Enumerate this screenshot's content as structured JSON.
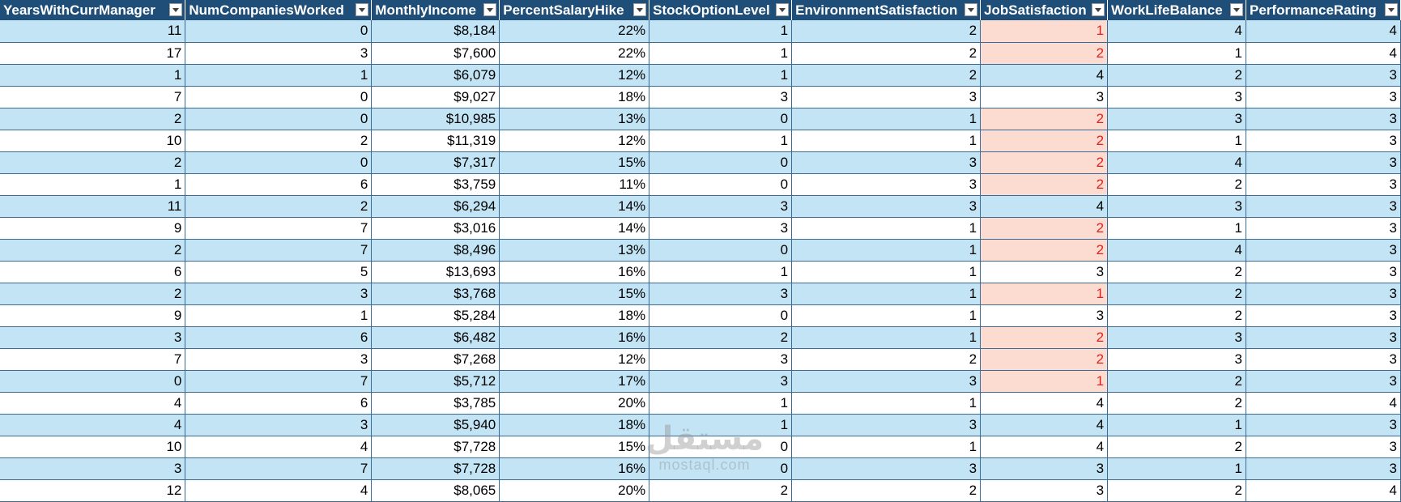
{
  "columns": [
    "YearsWithCurrManager",
    "NumCompaniesWorked",
    "MonthlyIncome",
    "PercentSalaryHike",
    "StockOptionLevel",
    "EnvironmentSatisfaction",
    "JobSatisfaction",
    "WorkLifeBalance",
    "PerformanceRating"
  ],
  "rows": [
    [
      "11",
      "0",
      "$8,184",
      "22%",
      "1",
      "2",
      "1",
      "4",
      "4"
    ],
    [
      "17",
      "3",
      "$7,600",
      "22%",
      "1",
      "2",
      "2",
      "1",
      "4"
    ],
    [
      "1",
      "1",
      "$6,079",
      "12%",
      "1",
      "2",
      "4",
      "2",
      "3"
    ],
    [
      "7",
      "0",
      "$9,027",
      "18%",
      "3",
      "3",
      "3",
      "3",
      "3"
    ],
    [
      "2",
      "0",
      "$10,985",
      "13%",
      "0",
      "1",
      "2",
      "3",
      "3"
    ],
    [
      "10",
      "2",
      "$11,319",
      "12%",
      "1",
      "1",
      "2",
      "1",
      "3"
    ],
    [
      "2",
      "0",
      "$7,317",
      "15%",
      "0",
      "3",
      "2",
      "4",
      "3"
    ],
    [
      "1",
      "6",
      "$3,759",
      "11%",
      "0",
      "3",
      "2",
      "2",
      "3"
    ],
    [
      "11",
      "2",
      "$6,294",
      "14%",
      "3",
      "3",
      "4",
      "3",
      "3"
    ],
    [
      "9",
      "7",
      "$3,016",
      "14%",
      "3",
      "1",
      "2",
      "1",
      "3"
    ],
    [
      "2",
      "7",
      "$8,496",
      "13%",
      "0",
      "1",
      "2",
      "4",
      "3"
    ],
    [
      "6",
      "5",
      "$13,693",
      "16%",
      "1",
      "1",
      "3",
      "2",
      "3"
    ],
    [
      "2",
      "3",
      "$3,768",
      "15%",
      "3",
      "1",
      "1",
      "2",
      "3"
    ],
    [
      "9",
      "1",
      "$5,284",
      "18%",
      "0",
      "1",
      "3",
      "2",
      "3"
    ],
    [
      "3",
      "6",
      "$6,482",
      "16%",
      "2",
      "1",
      "2",
      "3",
      "3"
    ],
    [
      "7",
      "3",
      "$7,268",
      "12%",
      "3",
      "2",
      "2",
      "3",
      "3"
    ],
    [
      "0",
      "7",
      "$5,712",
      "17%",
      "3",
      "3",
      "1",
      "2",
      "3"
    ],
    [
      "4",
      "6",
      "$3,785",
      "20%",
      "1",
      "1",
      "4",
      "2",
      "4"
    ],
    [
      "4",
      "3",
      "$5,940",
      "18%",
      "1",
      "3",
      "4",
      "1",
      "3"
    ],
    [
      "10",
      "4",
      "$7,728",
      "15%",
      "0",
      "1",
      "4",
      "2",
      "3"
    ],
    [
      "3",
      "7",
      "$7,728",
      "16%",
      "0",
      "3",
      "3",
      "1",
      "3"
    ],
    [
      "12",
      "4",
      "$8,065",
      "20%",
      "2",
      "2",
      "3",
      "2",
      "4"
    ]
  ],
  "highlight": {
    "column": "JobSatisfaction",
    "threshold": 2,
    "fill_color": "#fcdcd0",
    "text_color": "#e21f1f"
  },
  "colors": {
    "header_bg": "#1f4e78",
    "header_text": "#ffffff",
    "band_bg": "#c2e4f5",
    "plain_bg": "#ffffff"
  },
  "icons": {
    "filter": "filter-dropdown-icon"
  },
  "watermark": {
    "arabic": "مستقل",
    "latin": "mostaql.com"
  }
}
